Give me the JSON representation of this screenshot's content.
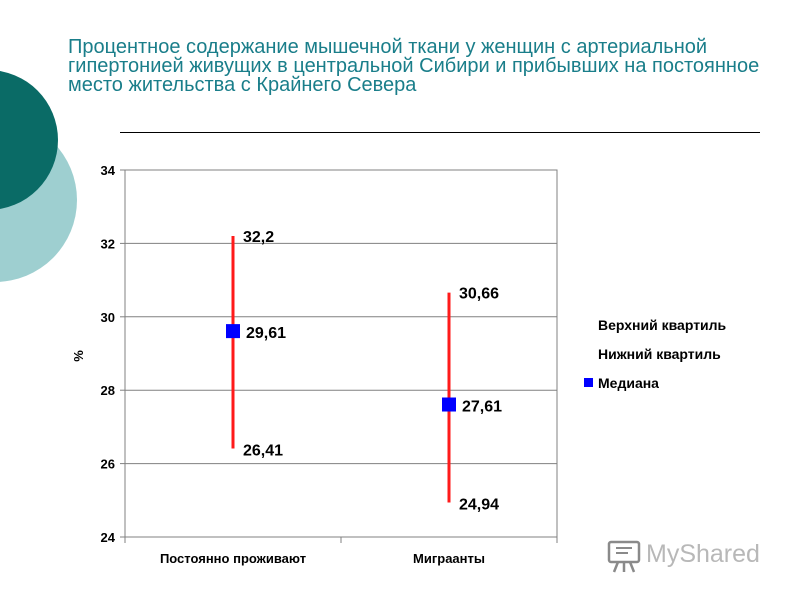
{
  "title": "Процентное содержание мышечной ткани у женщин с артериальной гипертонией живущих в центральной Сибири и прибывших на постоянное место жительства с Крайнего Севера",
  "watermark": "MyShared",
  "colors": {
    "title": "#1a7e8a",
    "deco_dark": "#0a6b66",
    "deco_light": "#9ecfd0",
    "range": "#ff1a1a",
    "median": "#0000ff"
  },
  "chart_data": {
    "type": "scatter",
    "categories": [
      "Постоянно проживают",
      "Миграанты"
    ],
    "ylabel": "%",
    "ylim": [
      24,
      34
    ],
    "yticks": [
      "24",
      "26",
      "28",
      "30",
      "32",
      "34"
    ],
    "grid": true,
    "legend_position": "right",
    "series": [
      {
        "name": "Верхний квартиль",
        "values": [
          32.2,
          30.66
        ],
        "labels": [
          "32,2",
          "30,66"
        ]
      },
      {
        "name": "Нижний квартиль",
        "values": [
          26.41,
          24.94
        ],
        "labels": [
          "26,41",
          "24,94"
        ]
      },
      {
        "name": "Медиана",
        "values": [
          29.61,
          27.61
        ],
        "labels": [
          "29,61",
          "27,61"
        ]
      }
    ]
  }
}
